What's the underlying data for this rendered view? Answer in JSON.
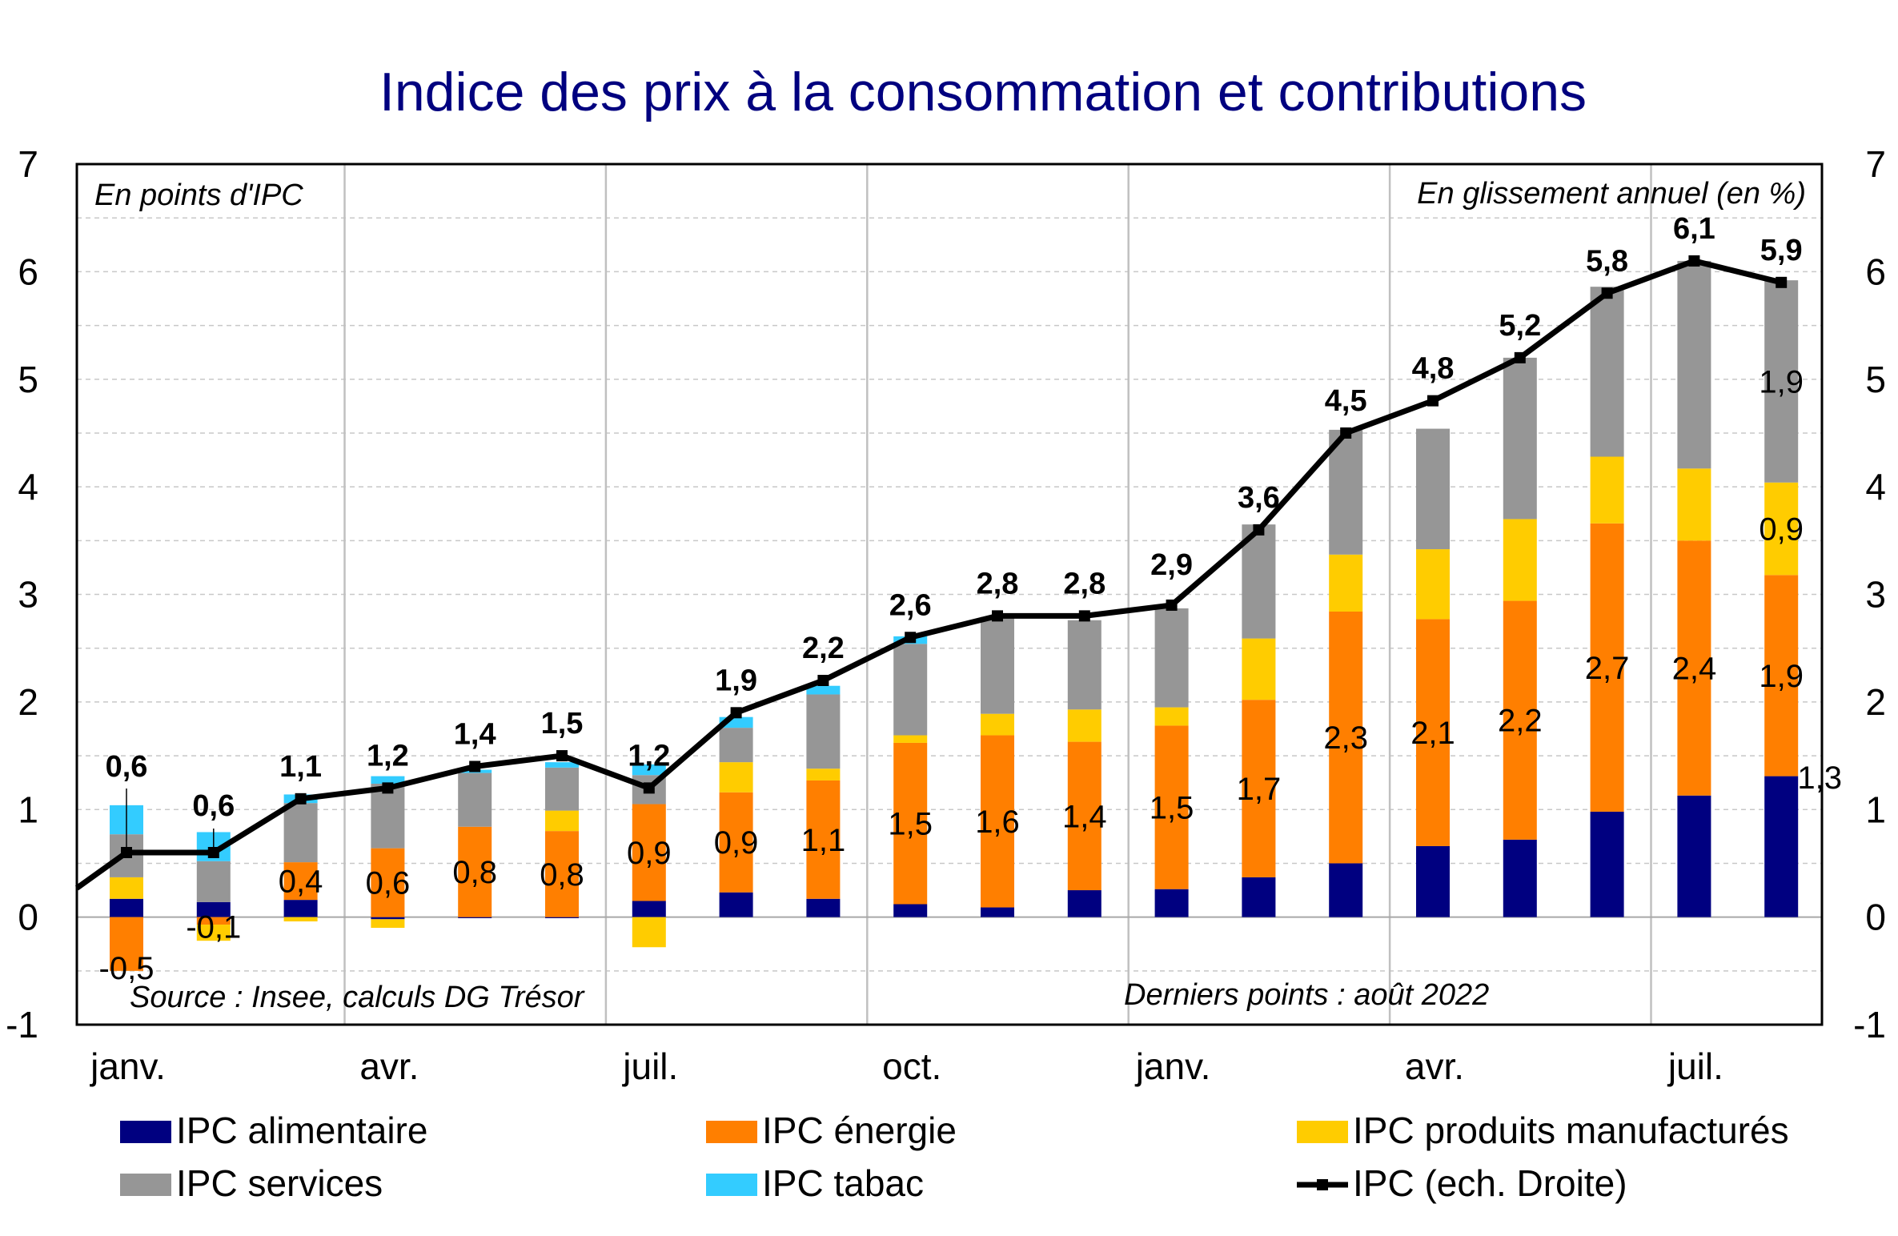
{
  "chart_data": {
    "type": "bar",
    "stacked": true,
    "title": "Indice des prix à la consommation et contributions",
    "left_axis_note": "En points d'IPC",
    "right_axis_note": "En glissement annuel (en %)",
    "source": "Source : Insee, calculs DG Trésor",
    "last_points": "Derniers points : août 2022",
    "ylim": [
      -1,
      7
    ],
    "y_ticks": [
      "-1",
      "0",
      "1",
      "2",
      "3",
      "4",
      "5",
      "6",
      "7"
    ],
    "x_tick_labels": [
      "janv.",
      "avr.",
      "juil.",
      "oct.",
      "janv.",
      "avr.",
      "juil."
    ],
    "grid": true,
    "legend_position": "bottom",
    "colors": {
      "IPC alimentaire": "#000080",
      "IPC énergie": "#ff7f00",
      "IPC produits manufacturés": "#ffcc00",
      "IPC services": "#969696",
      "IPC tabac": "#33ccff",
      "IPC (ech. Droite)": "#000000"
    },
    "series": [
      {
        "name": "IPC alimentaire",
        "kind": "bar",
        "values": [
          0.17,
          0.14,
          0.16,
          -0.02,
          -0.01,
          -0.01,
          0.15,
          0.23,
          0.17,
          0.12,
          0.09,
          0.25,
          0.26,
          0.37,
          0.5,
          0.66,
          0.72,
          0.98,
          1.13,
          1.31
        ]
      },
      {
        "name": "IPC énergie",
        "kind": "bar",
        "values": [
          -0.5,
          -0.07,
          0.35,
          0.64,
          0.84,
          0.8,
          0.9,
          0.93,
          1.1,
          1.5,
          1.6,
          1.38,
          1.52,
          1.65,
          2.34,
          2.11,
          2.22,
          2.68,
          2.37,
          1.87
        ]
      },
      {
        "name": "IPC produits manufacturés",
        "kind": "bar",
        "values": [
          0.2,
          -0.15,
          -0.04,
          -0.08,
          0.0,
          0.19,
          -0.28,
          0.28,
          0.11,
          0.07,
          0.2,
          0.3,
          0.17,
          0.57,
          0.53,
          0.65,
          0.76,
          0.62,
          0.67,
          0.86
        ]
      },
      {
        "name": "IPC services",
        "kind": "bar",
        "values": [
          0.4,
          0.38,
          0.55,
          0.6,
          0.5,
          0.4,
          0.27,
          0.32,
          0.69,
          0.85,
          0.9,
          0.83,
          0.92,
          1.06,
          1.16,
          1.12,
          1.5,
          1.58,
          1.93,
          1.88
        ]
      },
      {
        "name": "IPC tabac",
        "kind": "bar",
        "values": [
          0.27,
          0.27,
          0.08,
          0.07,
          0.03,
          0.05,
          0.1,
          0.1,
          0.08,
          0.07,
          0.0,
          0.0,
          0.0,
          0.0,
          0.0,
          0.0,
          0.0,
          0.0,
          0.0,
          0.0
        ]
      },
      {
        "name": "IPC (ech. Droite)",
        "kind": "line",
        "values": [
          0.6,
          0.6,
          1.1,
          1.2,
          1.4,
          1.5,
          1.2,
          1.9,
          2.2,
          2.6,
          2.8,
          2.8,
          2.9,
          3.6,
          4.5,
          4.8,
          5.2,
          5.8,
          6.1,
          5.9
        ]
      }
    ],
    "line_labels": [
      "0,6",
      "0,6",
      "1,1",
      "1,2",
      "1,4",
      "1,5",
      "1,2",
      "1,9",
      "2,2",
      "2,6",
      "2,8",
      "2,8",
      "2,9",
      "3,6",
      "4,5",
      "4,8",
      "5,2",
      "5,8",
      "6,1",
      "5,9"
    ],
    "bar_labels": [
      {
        "i": 0,
        "series": "IPC énergie",
        "text": "-0,5"
      },
      {
        "i": 1,
        "series": "IPC énergie",
        "text": "-0,1"
      },
      {
        "i": 2,
        "series": "IPC énergie",
        "text": "0,4"
      },
      {
        "i": 3,
        "series": "IPC énergie",
        "text": "0,6"
      },
      {
        "i": 4,
        "series": "IPC énergie",
        "text": "0,8"
      },
      {
        "i": 5,
        "series": "IPC énergie",
        "text": "0,8"
      },
      {
        "i": 6,
        "series": "IPC énergie",
        "text": "0,9"
      },
      {
        "i": 7,
        "series": "IPC énergie",
        "text": "0,9"
      },
      {
        "i": 8,
        "series": "IPC énergie",
        "text": "1,1"
      },
      {
        "i": 9,
        "series": "IPC énergie",
        "text": "1,5"
      },
      {
        "i": 10,
        "series": "IPC énergie",
        "text": "1,6"
      },
      {
        "i": 11,
        "series": "IPC énergie",
        "text": "1,4"
      },
      {
        "i": 12,
        "series": "IPC énergie",
        "text": "1,5"
      },
      {
        "i": 13,
        "series": "IPC énergie",
        "text": "1,7"
      },
      {
        "i": 14,
        "series": "IPC énergie",
        "text": "2,3"
      },
      {
        "i": 15,
        "series": "IPC énergie",
        "text": "2,1"
      },
      {
        "i": 16,
        "series": "IPC énergie",
        "text": "2,2"
      },
      {
        "i": 17,
        "series": "IPC énergie",
        "text": "2,7"
      },
      {
        "i": 18,
        "series": "IPC énergie",
        "text": "2,4"
      },
      {
        "i": 19,
        "series": "IPC énergie",
        "text": "1,9"
      },
      {
        "i": 19,
        "series": "IPC services",
        "text": "1,9"
      },
      {
        "i": 19,
        "series": "IPC produits manufacturés",
        "text": "0,9"
      },
      {
        "i": 19,
        "series": "IPC alimentaire",
        "text": "1,3"
      }
    ]
  },
  "legend": {
    "items": [
      {
        "label": "IPC alimentaire",
        "color": "#000080",
        "kind": "box"
      },
      {
        "label": "IPC énergie",
        "color": "#ff7f00",
        "kind": "box"
      },
      {
        "label": "IPC produits manufacturés",
        "color": "#ffcc00",
        "kind": "box"
      },
      {
        "label": "IPC services",
        "color": "#969696",
        "kind": "box"
      },
      {
        "label": "IPC tabac",
        "color": "#33ccff",
        "kind": "box"
      },
      {
        "label": "IPC (ech. Droite)",
        "color": "#000000",
        "kind": "line"
      }
    ]
  }
}
